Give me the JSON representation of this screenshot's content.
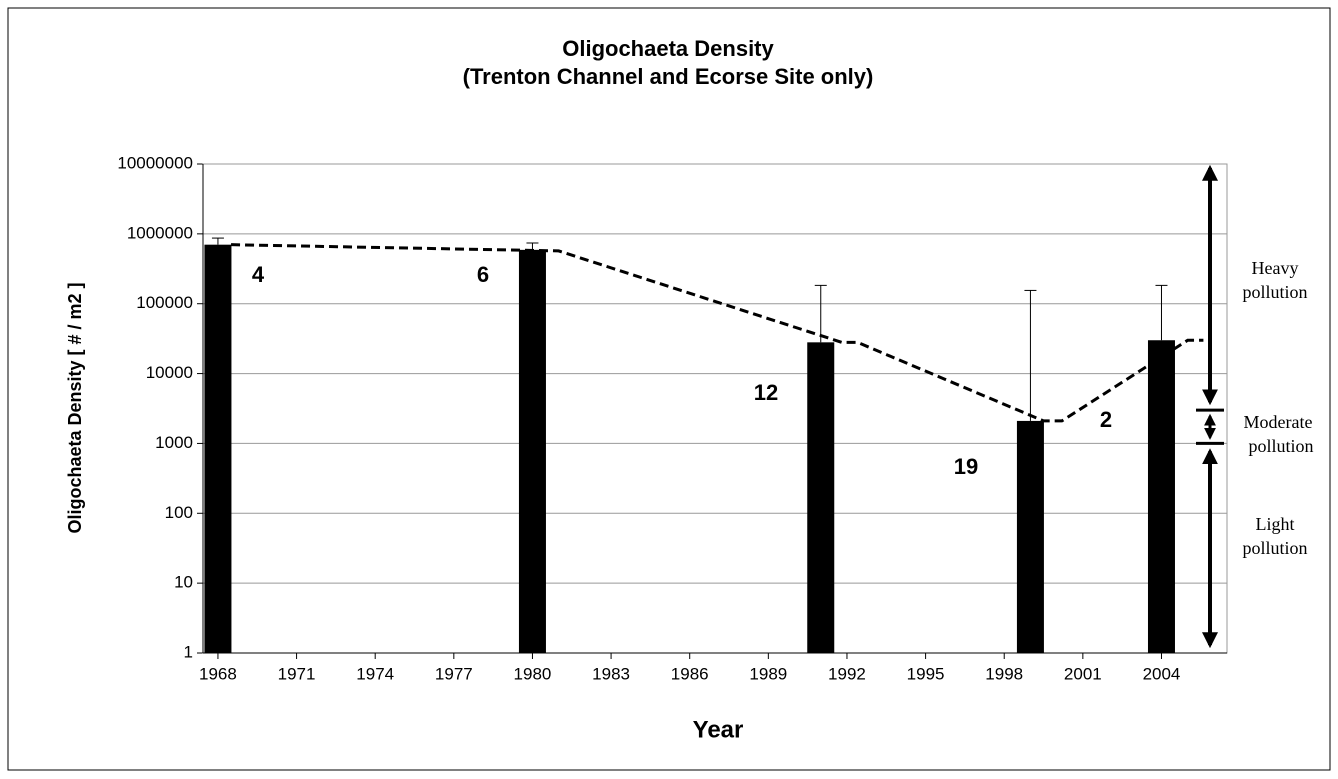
{
  "chart_data": {
    "type": "bar",
    "title": "Oligochaeta Density",
    "subtitle": "(Trenton Channel and Ecorse Site only)",
    "x_label": "Year",
    "y_label": "Oligochaeta Density [ # / m2 ]",
    "x": [
      1968,
      1980,
      1991,
      1999,
      2004
    ],
    "values": [
      700000,
      590000,
      28000,
      2100,
      30000
    ],
    "error_upper": [
      870000,
      740000,
      183000,
      155000,
      183000
    ],
    "color": "#000000",
    "sample_sizes": [
      4,
      6,
      12,
      19,
      2
    ],
    "trend": {
      "x": [
        1968.5,
        1981,
        1991.8,
        1992.4,
        1999.5,
        2000.2,
        2005,
        2005.6
      ],
      "values": [
        700000,
        570000,
        28000,
        28000,
        2100,
        2100,
        30000,
        30000
      ],
      "color": "#000000",
      "dashed": true
    },
    "xlim": [
      1967.43,
      2006.5
    ],
    "xticks": [
      1968,
      1971,
      1974,
      1977,
      1980,
      1983,
      1986,
      1989,
      1992,
      1995,
      1998,
      2001,
      2004
    ],
    "ylim": [
      1,
      10000000
    ],
    "yticks": [
      1,
      10,
      100,
      1000,
      10000,
      100000,
      1000000,
      10000000
    ],
    "log_y": true,
    "grid": true,
    "pollution_bands": [
      {
        "label": [
          "Heavy",
          "pollution"
        ],
        "from": 3000,
        "to": 10000000
      },
      {
        "label": [
          "Moderate",
          "pollution"
        ],
        "from": 1000,
        "to": 3000
      },
      {
        "label": [
          "Light",
          "pollution"
        ],
        "from": 1,
        "to": 1000
      }
    ]
  }
}
